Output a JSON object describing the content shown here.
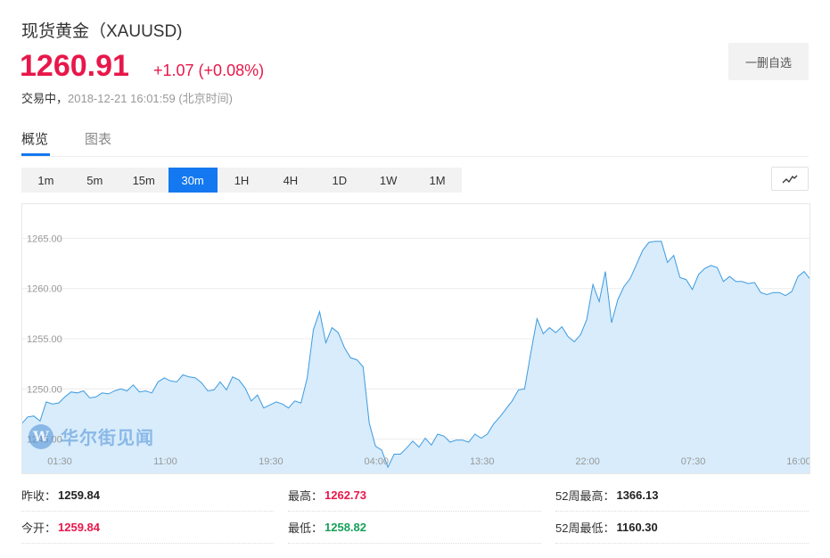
{
  "header": {
    "title": "现货黄金（XAUUSD)",
    "price": "1260.91",
    "change": "+1.07 (+0.08%)",
    "status_prefix": "交易中，",
    "timestamp": "2018-12-21 16:01:59 (北京时间)",
    "fav_button": "一删自选"
  },
  "tabs": [
    {
      "label": "概览",
      "active": true
    },
    {
      "label": "图表",
      "active": false
    }
  ],
  "periods": [
    {
      "label": "1m",
      "active": false
    },
    {
      "label": "5m",
      "active": false
    },
    {
      "label": "15m",
      "active": false
    },
    {
      "label": "30m",
      "active": true
    },
    {
      "label": "1H",
      "active": false
    },
    {
      "label": "4H",
      "active": false
    },
    {
      "label": "1D",
      "active": false
    },
    {
      "label": "1W",
      "active": false
    },
    {
      "label": "1M",
      "active": false
    }
  ],
  "watermark": {
    "text": "华尔街见闻"
  },
  "colors": {
    "up": "#e8174a",
    "down": "#18a05a",
    "accent": "#1478f0",
    "line": "#3d9be0",
    "fill": "#d8ecfb"
  },
  "chart_data": {
    "type": "area",
    "grid": true,
    "ylim": [
      1241.5,
      1268.5
    ],
    "yticks": [
      "1245.00",
      "1250.00",
      "1255.00",
      "1260.00",
      "1265.00"
    ],
    "xticks": [
      "01:30",
      "11:00",
      "19:30",
      "04:00",
      "13:30",
      "22:00",
      "07:30",
      "16:00"
    ],
    "values": [
      1246.5,
      1247.2,
      1247.3,
      1246.8,
      1248.7,
      1248.5,
      1248.6,
      1249.2,
      1249.7,
      1249.6,
      1249.8,
      1249.1,
      1249.2,
      1249.6,
      1249.5,
      1249.8,
      1250.0,
      1249.8,
      1250.4,
      1249.7,
      1249.8,
      1249.6,
      1250.7,
      1251.1,
      1250.8,
      1250.7,
      1251.4,
      1251.2,
      1251.1,
      1250.6,
      1249.8,
      1249.9,
      1250.7,
      1249.9,
      1251.2,
      1250.9,
      1250.1,
      1248.8,
      1249.4,
      1248.1,
      1248.4,
      1248.7,
      1248.5,
      1248.1,
      1248.8,
      1248.6,
      1251.1,
      1255.9,
      1257.7,
      1254.6,
      1256.1,
      1255.6,
      1254.1,
      1253.1,
      1252.9,
      1252.2,
      1246.6,
      1244.3,
      1243.9,
      1242.2,
      1243.5,
      1243.5,
      1244.1,
      1244.8,
      1244.2,
      1245.1,
      1244.4,
      1245.5,
      1245.3,
      1244.7,
      1244.9,
      1244.9,
      1244.7,
      1245.5,
      1245.1,
      1245.5,
      1246.5,
      1247.2,
      1248.0,
      1248.8,
      1249.9,
      1250.0,
      1253.6,
      1257.0,
      1255.5,
      1256.1,
      1255.6,
      1256.2,
      1255.2,
      1254.7,
      1255.4,
      1256.9,
      1260.4,
      1258.7,
      1261.7,
      1256.6,
      1258.9,
      1260.2,
      1261.0,
      1262.4,
      1263.8,
      1264.6,
      1264.7,
      1264.7,
      1262.6,
      1263.3,
      1261.1,
      1260.9,
      1259.9,
      1261.4,
      1262.0,
      1262.3,
      1262.1,
      1260.7,
      1261.2,
      1260.7,
      1260.7,
      1260.5,
      1260.6,
      1259.6,
      1259.4,
      1259.6,
      1259.6,
      1259.3,
      1259.7,
      1261.2,
      1261.7,
      1260.91
    ]
  },
  "stats": [
    {
      "label": "昨收：",
      "value": "1259.84",
      "color": "#222222"
    },
    {
      "label": "最高：",
      "value": "1262.73",
      "color": "#e8174a"
    },
    {
      "label": "52周最高：",
      "value": "1366.13",
      "color": "#222222"
    },
    {
      "label": "今开：",
      "value": "1259.84",
      "color": "#e8174a"
    },
    {
      "label": "最低：",
      "value": "1258.82",
      "color": "#18a05a"
    },
    {
      "label": "52周最低：",
      "value": "1160.30",
      "color": "#222222"
    }
  ]
}
